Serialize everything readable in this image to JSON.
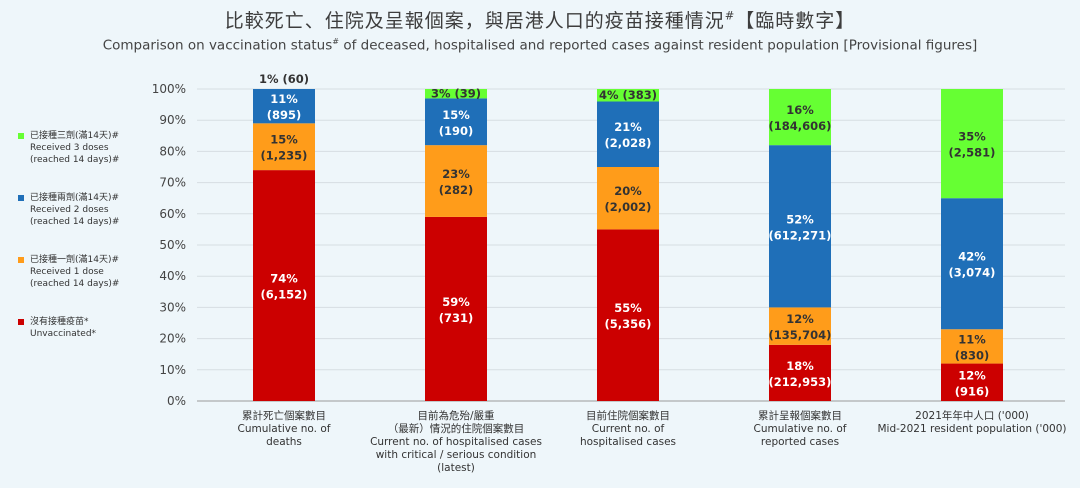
{
  "header": {
    "title_zh": "比較死亡、住院及呈報個案，與居港人口的疫苗接種情況",
    "title_zh_mark": "#",
    "title_zh_suffix": "【臨時數字】",
    "title_en_pre": "Comparison on vaccination status",
    "title_en_mark": "#",
    "title_en_post": " of deceased, hospitalised and reported cases against resident population [Provisional figures]"
  },
  "legend": [
    {
      "zh": "已接種三劑(滿14天)#",
      "en1": "Received 3 doses",
      "en2": "(reached 14 days)#",
      "color": "#66ff33"
    },
    {
      "zh": "已接種兩劑(滿14天)#",
      "en1": "Received 2 doses",
      "en2": "(reached 14 days)#",
      "color": "#1f6fb8"
    },
    {
      "zh": "已接種一劑(滿14天)#",
      "en1": "Received 1 dose",
      "en2": "(reached 14 days)#",
      "color": "#ff9c1a"
    },
    {
      "zh": "沒有接種疫苗*",
      "en1": "Unvaccinated*",
      "en2": "",
      "color": "#cc0000"
    }
  ],
  "chart_data": {
    "type": "bar",
    "stacked": true,
    "ylim": [
      0,
      100
    ],
    "yticks": [
      "0%",
      "10%",
      "20%",
      "30%",
      "40%",
      "50%",
      "60%",
      "70%",
      "80%",
      "90%",
      "100%"
    ],
    "categories": [
      [
        "累計死亡個案數目",
        "Cumulative no. of",
        "deaths"
      ],
      [
        "目前為危殆/嚴重",
        "（最新）情況的住院個案數目",
        "Current no. of hospitalised cases",
        "with critical / serious condition",
        "(latest)"
      ],
      [
        "目前住院個案數目",
        "Current no. of",
        "hospitalised cases"
      ],
      [
        "累計呈報個案數目",
        "Cumulative no. of",
        "reported cases"
      ],
      [
        "2021年年中人口 ('000)",
        "Mid-2021 resident population ('000)"
      ]
    ],
    "series": [
      {
        "name": "Unvaccinated*",
        "color": "#cc0000",
        "values": [
          74,
          59,
          55,
          18,
          12
        ],
        "pct": [
          "74%",
          "59%",
          "55%",
          "18%",
          "12%"
        ],
        "counts": [
          "(6,152)",
          "(731)",
          "(5,356)",
          "(212,953)",
          "(916)"
        ]
      },
      {
        "name": "Received 1 dose (reached 14 days)#",
        "color": "#ff9c1a",
        "values": [
          15,
          23,
          20,
          12,
          11
        ],
        "pct": [
          "15%",
          "23%",
          "20%",
          "12%",
          "11%"
        ],
        "counts": [
          "(1,235)",
          "(282)",
          "(2,002)",
          "(135,704)",
          "(830)"
        ]
      },
      {
        "name": "Received 2 doses (reached 14 days)#",
        "color": "#1f6fb8",
        "values": [
          11,
          15,
          21,
          52,
          42
        ],
        "pct": [
          "11%",
          "15%",
          "21%",
          "52%",
          "42%"
        ],
        "counts": [
          "(895)",
          "(190)",
          "(2,028)",
          "(612,271)",
          "(3,074)"
        ]
      },
      {
        "name": "Received 3 doses (reached 14 days)#",
        "color": "#66ff33",
        "values": [
          1,
          3,
          4,
          16,
          35
        ],
        "pct": [
          "1%",
          "3%",
          "4%",
          "16%",
          "35%"
        ],
        "counts": [
          "(60)",
          "(39)",
          "(383)",
          "(184,606)",
          "(2,581)"
        ]
      }
    ]
  }
}
